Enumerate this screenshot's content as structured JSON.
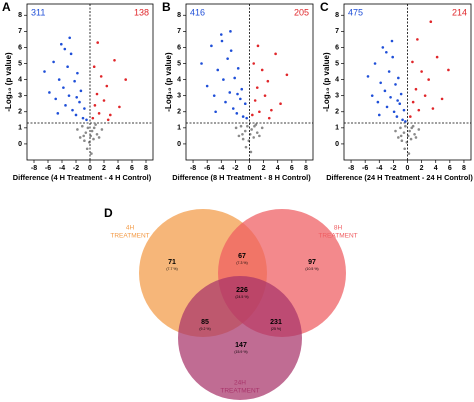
{
  "chart_data": [
    {
      "type": "scatter",
      "panel_label": "A",
      "y_label": "-Log₁₀ (p value)",
      "x_label": "Difference (4 H Treatment - 4 H Control)",
      "xlim": [
        -9,
        9
      ],
      "ylim": [
        -1,
        8.7
      ],
      "xticks": [
        -8,
        -6,
        -4,
        -2,
        0,
        2,
        4,
        6,
        8
      ],
      "yticks": [
        0,
        1,
        2,
        3,
        4,
        5,
        6,
        7,
        8
      ],
      "threshold_x": 0,
      "threshold_y": 1.3,
      "count_down": "311",
      "count_up": "138",
      "series": [
        {
          "name": "down",
          "color": "#1f4fd8",
          "x": [
            -6.5,
            -5.8,
            -5.2,
            -4.9,
            -4.4,
            -4.1,
            -3.8,
            -3.5,
            -3.2,
            -3.0,
            -2.7,
            -2.5,
            -2.2,
            -2.0,
            -1.8,
            -1.5,
            -1.3,
            -1.0,
            -0.8,
            -0.5,
            -3.6,
            -2.9,
            -1.9,
            -4.6
          ],
          "values": [
            4.5,
            3.2,
            5.1,
            2.8,
            4.0,
            6.2,
            3.5,
            2.4,
            4.8,
            3.0,
            5.6,
            2.1,
            3.9,
            1.8,
            4.4,
            2.6,
            3.3,
            1.6,
            2.2,
            1.5,
            5.9,
            6.6,
            2.9,
            1.9
          ]
        },
        {
          "name": "up",
          "color": "#e0262a",
          "x": [
            0.4,
            0.7,
            1.0,
            1.3,
            1.6,
            2.0,
            2.4,
            2.9,
            3.5,
            4.2,
            5.1,
            1.1,
            0.6,
            2.6
          ],
          "values": [
            1.6,
            2.4,
            3.1,
            1.9,
            4.2,
            2.7,
            3.6,
            1.8,
            5.2,
            2.3,
            4.0,
            6.3,
            4.8,
            1.5
          ]
        },
        {
          "name": "ns",
          "color": "#8a8a8a",
          "x": [
            -1.8,
            -1.4,
            -1.1,
            -0.8,
            -0.6,
            -0.3,
            -0.1,
            0.1,
            0.3,
            0.5,
            0.8,
            1.0,
            1.3,
            1.7,
            -0.4,
            0.2,
            -0.9,
            0.6
          ],
          "values": [
            0.9,
            0.4,
            1.1,
            0.2,
            0.7,
            1.0,
            0.1,
            0.5,
            0.8,
            0.3,
            1.2,
            0.6,
            0.4,
            0.9,
            -0.3,
            -0.6,
            0.5,
            1.0
          ]
        }
      ]
    },
    {
      "type": "scatter",
      "panel_label": "B",
      "y_label": "-Log₁₀ (p value)",
      "x_label": "Difference (8 H Treatment - 8 H Control)",
      "xlim": [
        -9,
        9
      ],
      "ylim": [
        -1,
        8.7
      ],
      "xticks": [
        -8,
        -6,
        -4,
        -2,
        0,
        2,
        4,
        6,
        8
      ],
      "yticks": [
        0,
        1,
        2,
        3,
        4,
        5,
        6,
        7,
        8
      ],
      "threshold_x": 0,
      "threshold_y": 1.3,
      "count_down": "416",
      "count_up": "205",
      "series": [
        {
          "name": "down",
          "color": "#1f4fd8",
          "x": [
            -6.8,
            -6.0,
            -5.4,
            -5.0,
            -4.5,
            -4.0,
            -3.7,
            -3.4,
            -3.1,
            -2.8,
            -2.6,
            -2.3,
            -2.1,
            -1.8,
            -1.6,
            -1.3,
            -1.1,
            -0.9,
            -0.6,
            -0.4,
            -3.9,
            -2.7,
            -1.7,
            -4.8
          ],
          "values": [
            5.0,
            3.6,
            6.1,
            3.0,
            4.6,
            6.8,
            4.0,
            2.6,
            5.3,
            3.2,
            5.8,
            2.2,
            4.1,
            1.9,
            4.7,
            2.8,
            3.4,
            1.7,
            2.5,
            1.6,
            6.4,
            7.0,
            3.1,
            2.0
          ]
        },
        {
          "name": "up",
          "color": "#e0262a",
          "x": [
            0.4,
            0.8,
            1.1,
            1.4,
            1.8,
            2.2,
            2.6,
            3.1,
            3.7,
            4.4,
            5.3,
            1.2,
            0.6,
            2.8
          ],
          "values": [
            1.8,
            2.7,
            3.5,
            2.0,
            4.6,
            3.0,
            3.9,
            2.1,
            5.6,
            2.5,
            4.3,
            6.1,
            5.0,
            1.6
          ]
        },
        {
          "name": "ns",
          "color": "#8a8a8a",
          "x": [
            -1.9,
            -1.5,
            -1.2,
            -0.9,
            -0.6,
            -0.3,
            -0.1,
            0.1,
            0.3,
            0.6,
            0.9,
            1.1,
            1.4,
            1.8,
            -0.5,
            0.2,
            -1.0,
            0.7
          ],
          "values": [
            1.0,
            0.5,
            1.1,
            0.3,
            0.8,
            1.1,
            0.2,
            0.6,
            0.9,
            0.4,
            1.2,
            0.7,
            0.5,
            1.0,
            -0.2,
            -0.5,
            0.6,
            1.1
          ]
        }
      ]
    },
    {
      "type": "scatter",
      "panel_label": "C",
      "y_label": "-Log₁₀ (p value)",
      "x_label": "Difference (24 H Treatment - 24 H Control)",
      "xlim": [
        -9,
        9
      ],
      "ylim": [
        -1,
        8.7
      ],
      "xticks": [
        -8,
        -6,
        -4,
        -2,
        0,
        2,
        4,
        6,
        8
      ],
      "yticks": [
        0,
        1,
        2,
        3,
        4,
        5,
        6,
        7,
        8
      ],
      "threshold_x": 0,
      "threshold_y": 1.3,
      "count_down": "475",
      "count_up": "214",
      "series": [
        {
          "name": "down",
          "color": "#1f4fd8",
          "x": [
            -5.6,
            -5.0,
            -4.6,
            -4.2,
            -3.8,
            -3.5,
            -3.2,
            -2.9,
            -2.6,
            -2.4,
            -2.1,
            -1.9,
            -1.7,
            -1.5,
            -1.3,
            -1.1,
            -0.9,
            -0.7,
            -0.5,
            -0.3,
            -3.0,
            -2.2,
            -1.4,
            -4.0
          ],
          "values": [
            4.2,
            3.0,
            5.0,
            2.6,
            3.8,
            6.0,
            3.3,
            2.3,
            4.5,
            2.9,
            5.4,
            2.0,
            3.7,
            1.7,
            4.1,
            2.5,
            3.1,
            1.5,
            2.1,
            1.4,
            5.7,
            6.4,
            2.7,
            1.8
          ]
        },
        {
          "name": "up",
          "color": "#e0262a",
          "x": [
            0.4,
            0.8,
            1.2,
            1.6,
            2.0,
            2.5,
            3.0,
            3.6,
            4.2,
            4.9,
            5.8,
            1.4,
            0.7,
            3.3
          ],
          "values": [
            1.7,
            2.6,
            3.4,
            2.1,
            4.5,
            3.0,
            4.0,
            2.2,
            5.4,
            2.8,
            4.6,
            6.5,
            5.1,
            7.6
          ]
        },
        {
          "name": "ns",
          "color": "#8a8a8a",
          "x": [
            -1.7,
            -1.3,
            -1.0,
            -0.8,
            -0.5,
            -0.3,
            -0.1,
            0.1,
            0.3,
            0.5,
            0.8,
            1.0,
            1.2,
            1.6,
            -0.4,
            0.2,
            -0.9,
            0.6
          ],
          "values": [
            0.8,
            0.4,
            1.0,
            0.2,
            0.7,
            1.1,
            0.1,
            0.5,
            0.8,
            0.3,
            1.1,
            0.6,
            0.4,
            0.9,
            -0.3,
            -0.6,
            0.5,
            1.0
          ]
        }
      ]
    },
    {
      "type": "venn",
      "panel_label": "D",
      "sets": [
        {
          "label_lines": [
            "4H",
            "TREATMENT"
          ],
          "color": "#f39a45"
        },
        {
          "label_lines": [
            "8H",
            "TREATMENT"
          ],
          "color": "#ef5c60"
        },
        {
          "label_lines": [
            "24H",
            "TREATMENT"
          ],
          "color": "#a8336a"
        }
      ],
      "regions": [
        {
          "count": 71,
          "percent": "(7.7 %)"
        },
        {
          "count": 67,
          "percent": "(7.3 %)"
        },
        {
          "count": 97,
          "percent": "(10.5 %)"
        },
        {
          "count": 85,
          "percent": "(9.2 %)"
        },
        {
          "count": 226,
          "percent": "(24.5 %)"
        },
        {
          "count": 231,
          "percent": "(25 %)"
        },
        {
          "count": 147,
          "percent": "(15.9 %)"
        }
      ]
    }
  ]
}
